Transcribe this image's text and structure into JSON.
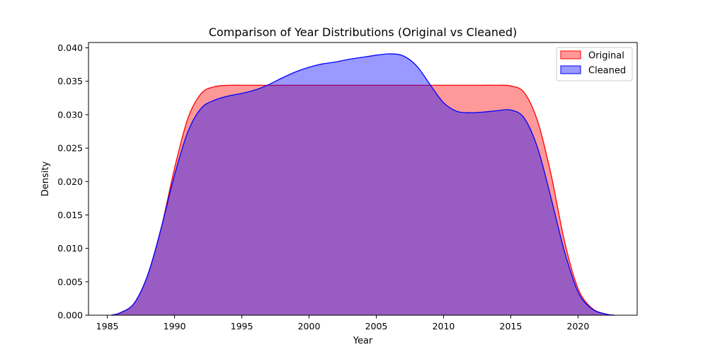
{
  "chart_data": {
    "type": "area",
    "title": "Comparison of Year Distributions (Original vs Cleaned)",
    "xlabel": "Year",
    "ylabel": "Density",
    "xlim": [
      1984.5,
      1924.5
    ],
    "ylim": [
      0,
      0.0408
    ],
    "x_ticks": [
      1985,
      1990,
      1995,
      2000,
      2005,
      2010,
      2015,
      2020
    ],
    "y_ticks": [
      0.0,
      0.005,
      0.01,
      0.015,
      0.02,
      0.025,
      0.03,
      0.035,
      0.04
    ],
    "y_tick_labels": [
      "0.000",
      "0.005",
      "0.010",
      "0.015",
      "0.020",
      "0.025",
      "0.030",
      "0.035",
      "0.040"
    ],
    "grid": false,
    "legend_position": "top-right",
    "series": [
      {
        "name": "Original",
        "color": "#ff0000",
        "fill": "#ff0000",
        "fill_opacity": 0.4,
        "x": [
          1985.3,
          1986,
          1987,
          1988,
          1989,
          1990,
          1991,
          1992,
          1993,
          1994,
          1995,
          1996,
          1997,
          1998,
          2000,
          2002,
          2004,
          2006,
          2008,
          2010,
          2012,
          2014,
          2015,
          2016,
          2017,
          2018,
          2019,
          2020,
          2021,
          2022,
          2022.7
        ],
        "y": [
          0.0,
          0.0004,
          0.0018,
          0.006,
          0.013,
          0.022,
          0.0295,
          0.0332,
          0.0342,
          0.0344,
          0.0344,
          0.0344,
          0.0344,
          0.0344,
          0.0344,
          0.0344,
          0.0344,
          0.0344,
          0.0344,
          0.0344,
          0.0344,
          0.0344,
          0.0343,
          0.0333,
          0.029,
          0.021,
          0.011,
          0.004,
          0.0011,
          0.0002,
          0.0
        ]
      },
      {
        "name": "Cleaned",
        "color": "#0000ff",
        "fill": "#0000ff",
        "fill_opacity": 0.4,
        "x": [
          1985.3,
          1986,
          1987,
          1988,
          1989,
          1990,
          1991,
          1992,
          1993,
          1994,
          1995,
          1996,
          1997,
          1998,
          1999,
          2000,
          2001,
          2002,
          2003,
          2004,
          2005,
          2006,
          2007,
          2008,
          2009,
          2010,
          2011,
          2012,
          2013,
          2014,
          2015,
          2016,
          2017,
          2018,
          2019,
          2020,
          2021,
          2022,
          2022.7
        ],
        "y": [
          0.0,
          0.0004,
          0.0018,
          0.006,
          0.013,
          0.021,
          0.0275,
          0.031,
          0.0322,
          0.0328,
          0.0332,
          0.0337,
          0.0345,
          0.0355,
          0.0364,
          0.0371,
          0.0376,
          0.0379,
          0.0383,
          0.0386,
          0.0389,
          0.0391,
          0.0388,
          0.0373,
          0.0345,
          0.0318,
          0.0305,
          0.0303,
          0.0304,
          0.0306,
          0.0307,
          0.0295,
          0.025,
          0.0175,
          0.0095,
          0.0035,
          0.001,
          0.0002,
          0.0
        ]
      }
    ]
  }
}
